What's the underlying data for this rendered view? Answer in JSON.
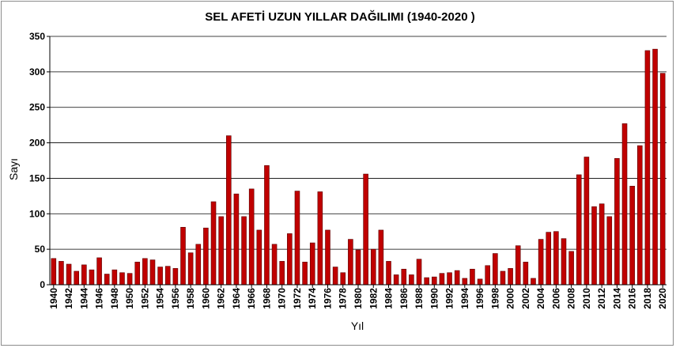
{
  "chart_data": {
    "type": "bar",
    "title": "SEL AFETİ UZUN YILLAR DAĞILIMI (1940-2020 )",
    "xlabel": "Yıl",
    "ylabel": "Sayı",
    "ylim": [
      0,
      350
    ],
    "yticks": [
      0,
      50,
      100,
      150,
      200,
      250,
      300,
      350
    ],
    "grid": true,
    "legend": "none",
    "bar_color": "#c00000",
    "bar_stroke": "#5a0000",
    "categories": [
      "1940",
      "1941",
      "1942",
      "1943",
      "1944",
      "1945",
      "1946",
      "1947",
      "1948",
      "1949",
      "1950",
      "1951",
      "1952",
      "1953",
      "1954",
      "1955",
      "1956",
      "1957",
      "1958",
      "1959",
      "1960",
      "1961",
      "1962",
      "1963",
      "1964",
      "1965",
      "1966",
      "1967",
      "1968",
      "1969",
      "1970",
      "1971",
      "1972",
      "1973",
      "1974",
      "1975",
      "1976",
      "1977",
      "1978",
      "1979",
      "1980",
      "1981",
      "1982",
      "1983",
      "1984",
      "1985",
      "1986",
      "1987",
      "1988",
      "1989",
      "1990",
      "1991",
      "1992",
      "1993",
      "1994",
      "1995",
      "1996",
      "1997",
      "1998",
      "1999",
      "2000",
      "2001",
      "2002",
      "2003",
      "2004",
      "2005",
      "2006",
      "2007",
      "2008",
      "2009",
      "2010",
      "2011",
      "2012",
      "2013",
      "2014",
      "2015",
      "2016",
      "2017",
      "2018",
      "2019",
      "2020"
    ],
    "tick_labels": [
      "1940",
      "1942",
      "1944",
      "1946",
      "1948",
      "1950",
      "1952",
      "1954",
      "1956",
      "1958",
      "1960",
      "1962",
      "1964",
      "1966",
      "1968",
      "1970",
      "1972",
      "1974",
      "1976",
      "1978",
      "1980",
      "1982",
      "1984",
      "1986",
      "1988",
      "1990",
      "1992",
      "1994",
      "1996",
      "1998",
      "2000",
      "2002",
      "2004",
      "2006",
      "2008",
      "2010",
      "2012",
      "2014",
      "2016",
      "2018",
      "2020"
    ],
    "values": [
      37,
      33,
      29,
      19,
      28,
      21,
      38,
      15,
      21,
      17,
      16,
      32,
      37,
      35,
      25,
      26,
      23,
      81,
      45,
      57,
      80,
      117,
      96,
      210,
      128,
      96,
      135,
      77,
      168,
      57,
      33,
      72,
      132,
      32,
      59,
      131,
      77,
      25,
      17,
      64,
      49,
      156,
      50,
      77,
      33,
      14,
      22,
      14,
      36,
      10,
      11,
      16,
      17,
      20,
      9,
      22,
      8,
      27,
      44,
      19,
      23,
      55,
      32,
      9,
      64,
      74,
      75,
      65,
      47,
      155,
      180,
      110,
      114,
      96,
      178,
      227,
      139,
      196,
      330,
      332,
      298
    ]
  }
}
